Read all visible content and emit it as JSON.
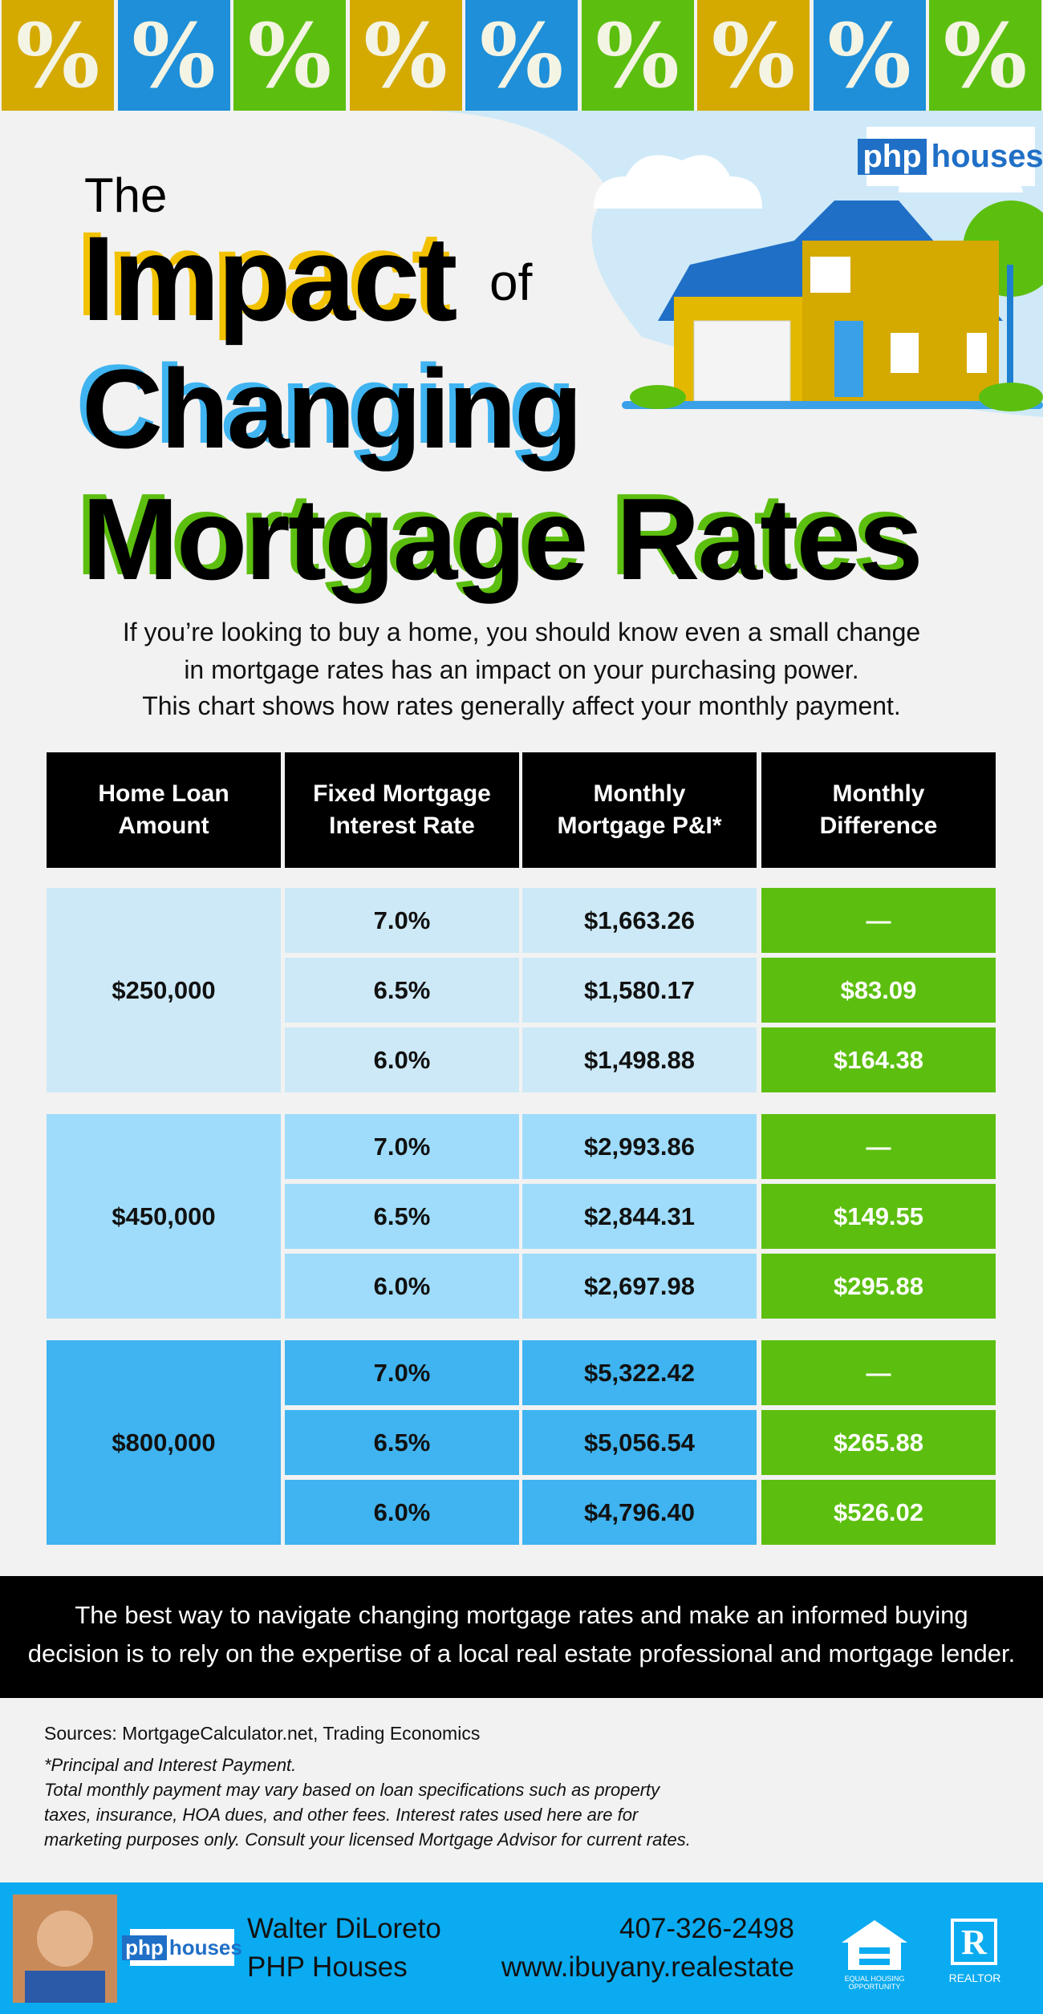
{
  "banner": [
    "%",
    "%",
    "%",
    "%",
    "%",
    "%",
    "%",
    "%",
    "%"
  ],
  "logo": {
    "php": "php",
    "houses": "houses"
  },
  "title": {
    "line1": "The",
    "impact": "Impact",
    "of": "of",
    "changing": "Changing",
    "rates": "Mortgage Rates"
  },
  "intro": [
    "If you’re looking to buy a home, you should know even a small change",
    "in mortgage rates has an impact on your purchasing power.",
    "This chart shows how rates generally affect your monthly payment."
  ],
  "table": {
    "header": [
      [
        "Home Loan",
        "Amount"
      ],
      [
        "Fixed Mortgage",
        "Interest Rate"
      ],
      [
        "Monthly",
        "Mortgage P&I*"
      ],
      [
        "Monthly",
        "Difference"
      ]
    ],
    "groups": [
      {
        "amount": "$250,000",
        "rows": [
          [
            "7.0%",
            "$1,663.26",
            "—"
          ],
          [
            "6.5%",
            "$1,580.17",
            "$83.09"
          ],
          [
            "6.0%",
            "$1,498.88",
            "$164.38"
          ]
        ]
      },
      {
        "amount": "$450,000",
        "rows": [
          [
            "7.0%",
            "$2,993.86",
            "—"
          ],
          [
            "6.5%",
            "$2,844.31",
            "$149.55"
          ],
          [
            "6.0%",
            "$2,697.98",
            "$295.88"
          ]
        ]
      },
      {
        "amount": "$800,000",
        "rows": [
          [
            "7.0%",
            "$5,322.42",
            "—"
          ],
          [
            "6.5%",
            "$5,056.54",
            "$265.88"
          ],
          [
            "6.0%",
            "$4,796.40",
            "$526.02"
          ]
        ]
      }
    ]
  },
  "callout": [
    "The best way to navigate changing mortgage rates and make an informed buying",
    "decision is to rely on the expertise of a local real estate professional and mortgage lender."
  ],
  "sources": "Sources: MortgageCalculator.net, Trading Economics",
  "footnote": [
    "*Principal and Interest Payment.",
    "Total monthly payment may vary based on loan specifications such as property",
    "taxes, insurance, HOA dues, and other fees. Interest rates used here are for",
    "marketing purposes only. Consult your licensed Mortgage Advisor for current rates."
  ],
  "footer": {
    "name": "Walter DiLoreto",
    "company": "PHP Houses",
    "phone": "407-326-2498",
    "website": "www.ibuyany.realestate",
    "equal_housing": "EQUAL HOUSING OPPORTUNITY",
    "realtor": "REALTOR"
  }
}
